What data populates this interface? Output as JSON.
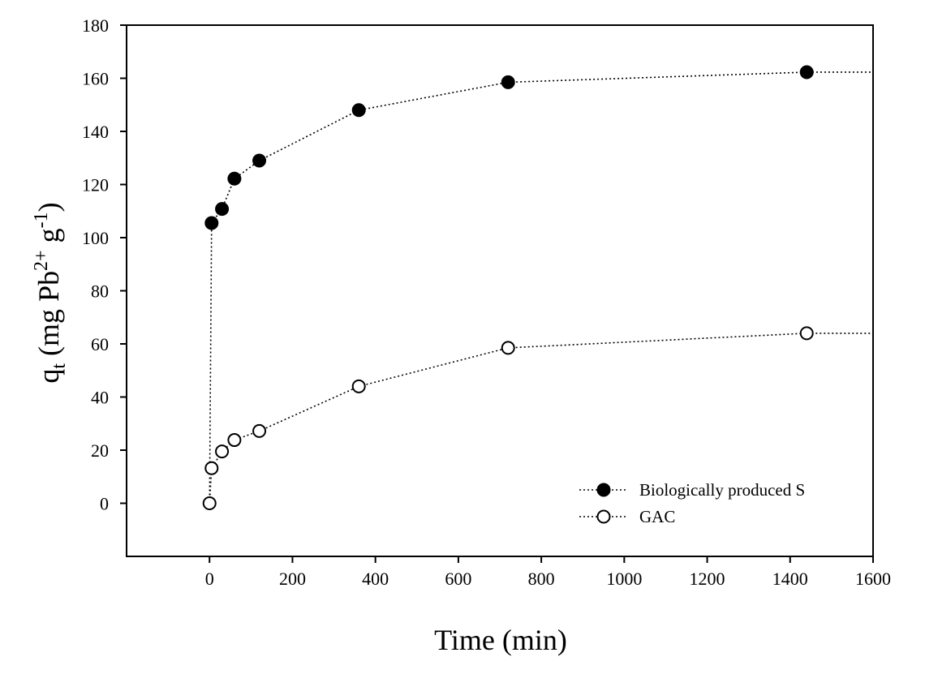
{
  "chart_data": {
    "type": "scatter",
    "xlabel": "Time (min)",
    "ylabel": {
      "q": "q",
      "q_sub": "t",
      "open": " (mg Pb",
      "pb_sup": "2+",
      "g": " g",
      "g_sup": "-1",
      "close": ")"
    },
    "xlim": [
      -200,
      1600
    ],
    "ylim": [
      -20,
      180
    ],
    "x_ticks": [
      0,
      200,
      400,
      600,
      800,
      1000,
      1200,
      1400,
      1600
    ],
    "x_tick_labels": [
      "0",
      "200",
      "400",
      "600",
      "800",
      "1000",
      "1200",
      "1400",
      "1600"
    ],
    "y_ticks": [
      0,
      20,
      40,
      60,
      80,
      100,
      120,
      140,
      160,
      180
    ],
    "y_tick_labels": [
      "0",
      "20",
      "40",
      "60",
      "80",
      "100",
      "120",
      "140",
      "160",
      "180"
    ],
    "grid": false,
    "legend_position": "bottom-right",
    "line_style": "dotted",
    "line_extends_to_x": 1600,
    "series": [
      {
        "name": "Biologically produced S",
        "marker": "filled-circle",
        "x": [
          0,
          5,
          30,
          60,
          120,
          360,
          720,
          1440
        ],
        "y": [
          0,
          105.5,
          110.8,
          122.2,
          129.0,
          148.0,
          158.5,
          162.3
        ],
        "points_with_markers_from_index": 1
      },
      {
        "name": "GAC",
        "marker": "open-circle",
        "x": [
          0,
          5,
          30,
          60,
          120,
          360,
          720,
          1440
        ],
        "y": [
          0,
          13.2,
          19.5,
          23.8,
          27.2,
          44.0,
          58.5,
          64.0
        ],
        "points_with_markers_from_index": 0
      }
    ]
  }
}
